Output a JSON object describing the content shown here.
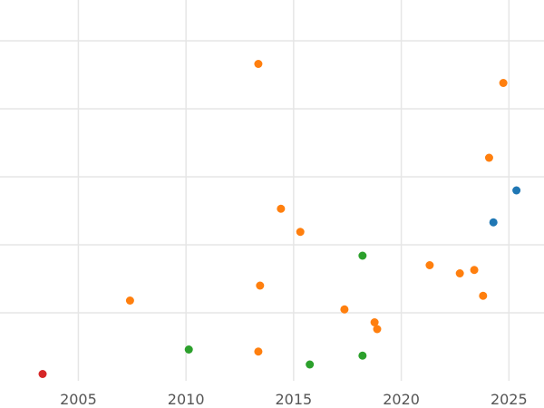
{
  "chart_data": {
    "type": "scatter",
    "title": "",
    "xlabel": "",
    "ylabel": "",
    "xlim": [
      2001.36,
      2026.63
    ],
    "ylim": [
      0,
      5.6
    ],
    "grid": true,
    "x_ticks": [
      2005,
      2010,
      2015,
      2020,
      2025
    ],
    "x_tick_labels": [
      "2005",
      "2010",
      "2015",
      "2020",
      "2025"
    ],
    "y_ticks": [
      1,
      2,
      3,
      4,
      5
    ],
    "colors": {
      "blue": "#1f77b4",
      "orange": "#ff7f0e",
      "green": "#2ca02c",
      "red": "#d62728",
      "grid": "#e6e6e6"
    },
    "series": [
      {
        "color": "#1f77b4",
        "points": [
          {
            "x": 2025.35,
            "y": 2.8
          },
          {
            "x": 2024.28,
            "y": 2.33
          }
        ]
      },
      {
        "color": "#ff7f0e",
        "points": [
          {
            "x": 2013.36,
            "y": 4.66
          },
          {
            "x": 2024.74,
            "y": 4.38
          },
          {
            "x": 2024.08,
            "y": 3.28
          },
          {
            "x": 2014.41,
            "y": 2.53
          },
          {
            "x": 2015.31,
            "y": 2.19
          },
          {
            "x": 2021.32,
            "y": 1.7
          },
          {
            "x": 2023.39,
            "y": 1.63
          },
          {
            "x": 2022.72,
            "y": 1.58
          },
          {
            "x": 2023.8,
            "y": 1.25
          },
          {
            "x": 2013.44,
            "y": 1.4
          },
          {
            "x": 2007.4,
            "y": 1.18
          },
          {
            "x": 2017.36,
            "y": 1.05
          },
          {
            "x": 2018.76,
            "y": 0.86
          },
          {
            "x": 2018.88,
            "y": 0.76
          },
          {
            "x": 2013.36,
            "y": 0.43
          }
        ]
      },
      {
        "color": "#2ca02c",
        "points": [
          {
            "x": 2018.2,
            "y": 1.84
          },
          {
            "x": 2010.13,
            "y": 0.46
          },
          {
            "x": 2018.2,
            "y": 0.37
          },
          {
            "x": 2015.75,
            "y": 0.24
          }
        ]
      },
      {
        "color": "#d62728",
        "points": [
          {
            "x": 2003.34,
            "y": 0.1
          }
        ]
      }
    ]
  }
}
